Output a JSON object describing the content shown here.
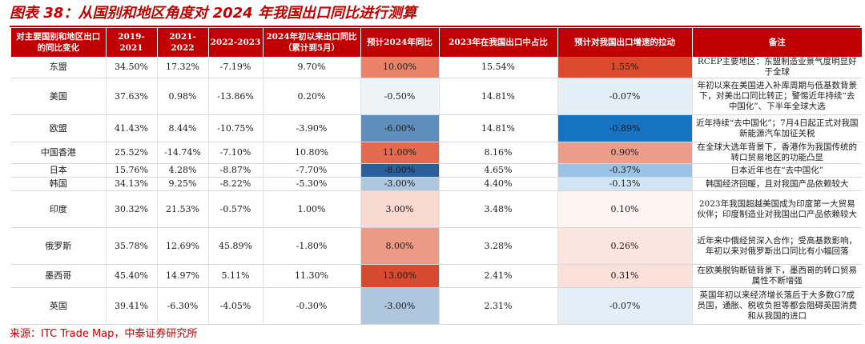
{
  "title": "图表 38：从国别和地区角度对 2024 年我国出口同比进行测算",
  "source": "来源：ITC Trade Map，中泰证券研究所",
  "headers": {
    "region": "对主要国别和地区出口的同比变化",
    "c1": "2019-2021",
    "c2": "2021-2022",
    "c3": "2022-2023",
    "c4": "2024年初以来出口同比（累计到5月）",
    "c5": "预计2024年同比",
    "c6": "2023年在我国出口中占比",
    "c7": "预计对我国出口增速的拉动",
    "c8": "备注"
  },
  "colors": {
    "header_bg": "#c00000",
    "title_red": "#c00000"
  },
  "rows": [
    {
      "region": "东盟",
      "y1921": "34.50%",
      "y2122": "17.32%",
      "y2223": "-7.19%",
      "ytd": "9.70%",
      "f2024": "10.00%",
      "f2024_color": "#e8836a",
      "share": "15.54%",
      "contrib": "1.55%",
      "contrib_color": "#db4a2c",
      "note": "RCEP主要地区：东盟制造业景气度明显好于全球"
    },
    {
      "region": "美国",
      "y1921": "37.63%",
      "y2122": "0.98%",
      "y2223": "-13.86%",
      "ytd": "0.20%",
      "f2024": "-0.50%",
      "f2024_color": "#eef3f8",
      "share": "14.81%",
      "contrib": "-0.07%",
      "contrib_color": "#e4eef7",
      "note": "年初以来在美国进入补库周期与低基数背景下，对美出口同比转正；警惕近年持续“去中国化”、下半年全球大选"
    },
    {
      "region": "欧盟",
      "y1921": "41.43%",
      "y2122": "8.44%",
      "y2223": "-10.75%",
      "ytd": "-3.90%",
      "f2024": "-6.00%",
      "f2024_color": "#5f8dbc",
      "share": "14.81%",
      "contrib": "-0.89%",
      "contrib_color": "#1672c2",
      "note": "近年持续“去中国化”；7月4日起正式对我国新能源汽车加征关税"
    },
    {
      "region": "中国香港",
      "y1921": "25.52%",
      "y2122": "-14.74%",
      "y2223": "-7.10%",
      "ytd": "10.80%",
      "f2024": "11.00%",
      "f2024_color": "#e3694f",
      "share": "8.16%",
      "contrib": "0.90%",
      "contrib_color": "#ec9d89",
      "note": "在全球大选年背景下，香港作为我国传统的转口贸易地区的功能凸显"
    },
    {
      "region": "日本",
      "y1921": "15.76%",
      "y2122": "4.28%",
      "y2223": "-8.87%",
      "ytd": "-7.70%",
      "f2024": "-8.00%",
      "f2024_color": "#2b5f9c",
      "share": "4.65%",
      "contrib": "-0.37%",
      "contrib_color": "#9cc3e3",
      "note": "日本近年也在“去中国化”"
    },
    {
      "region": "韩国",
      "y1921": "34.13%",
      "y2122": "9.25%",
      "y2223": "-8.22%",
      "ytd": "-5.30%",
      "f2024": "-3.00%",
      "f2024_color": "#aec6de",
      "share": "4.40%",
      "contrib": "-0.13%",
      "contrib_color": "#d2e4f3",
      "note": "韩国经济回暖，且对我国产品依赖较大"
    },
    {
      "region": "印度",
      "y1921": "30.32%",
      "y2122": "21.53%",
      "y2223": "-0.57%",
      "ytd": "1.00%",
      "f2024": "3.00%",
      "f2024_color": "#f8d9d0",
      "share": "3.48%",
      "contrib": "0.10%",
      "contrib_color": "#fdf3f0",
      "note": "2023年我国超越美国成为印度第一大贸易伙伴；印度制造业对我国出口产品依赖较大"
    },
    {
      "region": "俄罗斯",
      "y1921": "35.78%",
      "y2122": "12.69%",
      "y2223": "45.89%",
      "ytd": "-1.80%",
      "f2024": "8.00%",
      "f2024_color": "#ec9a86",
      "share": "3.28%",
      "contrib": "0.26%",
      "contrib_color": "#fbe5de",
      "note": "近年来中俄经贸深入合作；受高基数影响，年初以来对俄罗斯出口同比有小幅回落"
    },
    {
      "region": "墨西哥",
      "y1921": "45.40%",
      "y2122": "14.97%",
      "y2223": "5.11%",
      "ytd": "11.30%",
      "f2024": "13.00%",
      "f2024_color": "#d84a2e",
      "share": "2.41%",
      "contrib": "0.31%",
      "contrib_color": "#fae0d9",
      "note": "在欧美脱钩断链背景下，墨西哥的转口贸易属性不断增强"
    },
    {
      "region": "英国",
      "y1921": "39.41%",
      "y2122": "-6.30%",
      "y2223": "-4.05%",
      "ytd": "-0.30%",
      "f2024": "-3.00%",
      "f2024_color": "#aec6de",
      "share": "2.31%",
      "contrib": "-0.07%",
      "contrib_color": "#e4eef7",
      "note": "英国年初以来经济增长落后于大多数G7成员国，通胀、税收负担等都会阻碍英国消费和从我国的进口"
    }
  ]
}
